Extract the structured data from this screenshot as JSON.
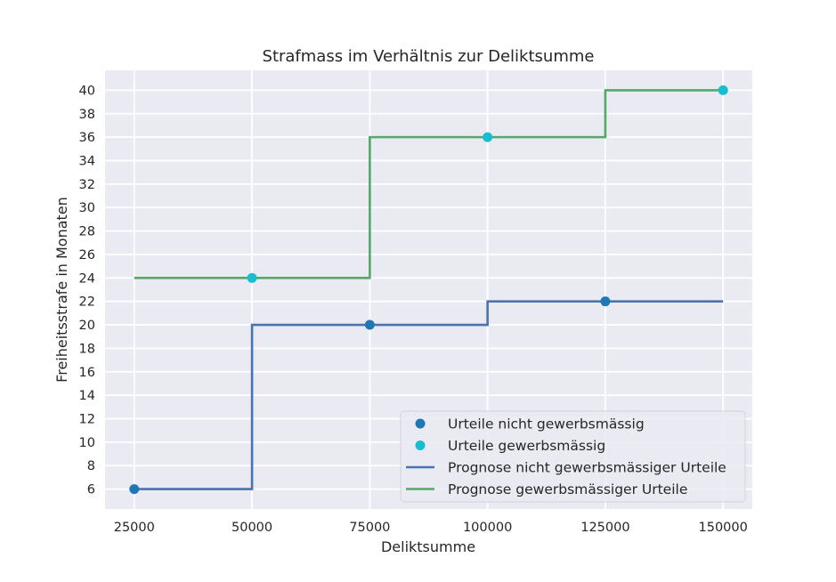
{
  "chart_data": {
    "type": "line",
    "title": "Strafmass im Verhältnis zur Deliktsumme",
    "xlabel": "Deliktsumme",
    "ylabel": "Freiheitsstrafe in Monaten",
    "xlim": [
      18800,
      156200
    ],
    "ylim": [
      4.3,
      41.7
    ],
    "xticks": [
      25000,
      50000,
      75000,
      100000,
      125000,
      150000
    ],
    "yticks": [
      6,
      8,
      10,
      12,
      14,
      16,
      18,
      20,
      22,
      24,
      26,
      28,
      30,
      32,
      34,
      36,
      38,
      40
    ],
    "grid": true,
    "legend_position": "lower-right",
    "background_color": "#eaeaf2",
    "series": [
      {
        "name": "Urteile nicht gewerbsmässig",
        "kind": "scatter",
        "color": "#1f77b4",
        "x": [
          25000,
          75000,
          125000
        ],
        "y": [
          6,
          20,
          22
        ]
      },
      {
        "name": "Urteile gewerbsmässig",
        "kind": "scatter",
        "color": "#17becf",
        "x": [
          50000,
          100000,
          150000
        ],
        "y": [
          24,
          36,
          40
        ]
      },
      {
        "name": "Prognose nicht gewerbsmässiger Urteile",
        "kind": "line",
        "color": "#4c72b0",
        "x": [
          25000,
          50000,
          50000,
          100000,
          100000,
          150000
        ],
        "y": [
          6,
          6,
          20,
          20,
          22,
          22
        ]
      },
      {
        "name": "Prognose gewerbsmässiger Urteile",
        "kind": "line",
        "color": "#55a868",
        "x": [
          25000,
          75000,
          75000,
          125000,
          125000,
          150000
        ],
        "y": [
          24,
          24,
          36,
          36,
          40,
          40
        ]
      }
    ]
  }
}
